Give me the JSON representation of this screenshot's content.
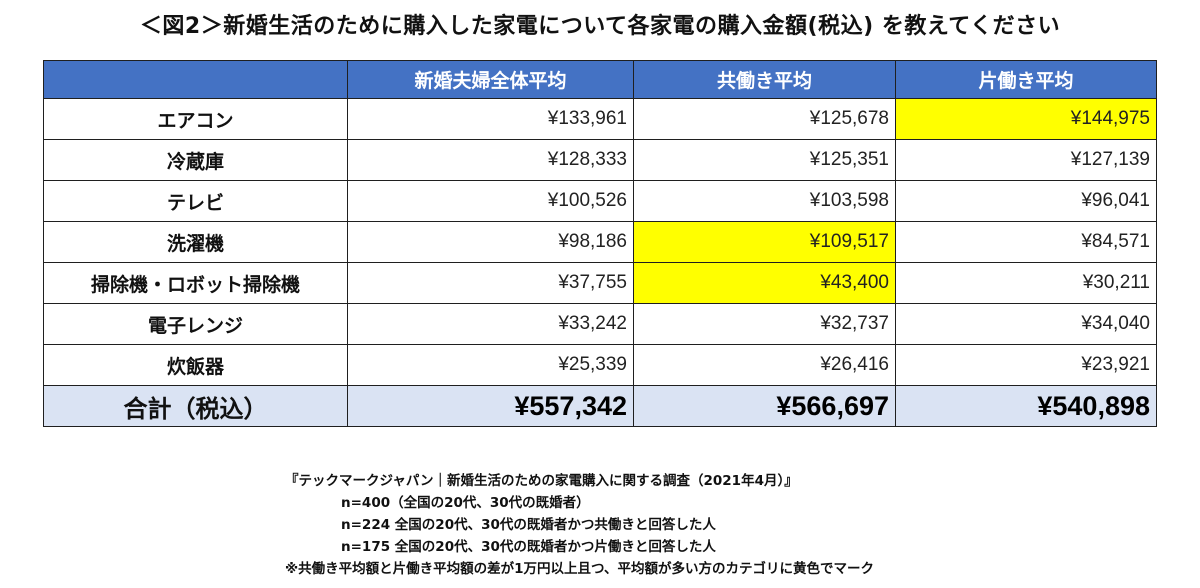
{
  "title": "＜図2＞新婚生活のために購入した家電について各家電の購入金額(税込) を教えてください",
  "chart_data": {
    "type": "table",
    "columns": [
      "",
      "新婚夫婦全体平均",
      "共働き平均",
      "片働き平均"
    ],
    "rows": [
      {
        "label": "エアコン",
        "values": [
          "¥133,961",
          "¥125,678",
          "¥144,975"
        ],
        "highlight": [
          false,
          false,
          true
        ]
      },
      {
        "label": "冷蔵庫",
        "values": [
          "¥128,333",
          "¥125,351",
          "¥127,139"
        ],
        "highlight": [
          false,
          false,
          false
        ]
      },
      {
        "label": "テレビ",
        "values": [
          "¥100,526",
          "¥103,598",
          "¥96,041"
        ],
        "highlight": [
          false,
          false,
          false
        ]
      },
      {
        "label": "洗濯機",
        "values": [
          "¥98,186",
          "¥109,517",
          "¥84,571"
        ],
        "highlight": [
          false,
          true,
          false
        ]
      },
      {
        "label": "掃除機・ロボット掃除機",
        "values": [
          "¥37,755",
          "¥43,400",
          "¥30,211"
        ],
        "highlight": [
          false,
          true,
          false
        ]
      },
      {
        "label": "電子レンジ",
        "values": [
          "¥33,242",
          "¥32,737",
          "¥34,040"
        ],
        "highlight": [
          false,
          false,
          false
        ]
      },
      {
        "label": "炊飯器",
        "values": [
          "¥25,339",
          "¥26,416",
          "¥23,921"
        ],
        "highlight": [
          false,
          false,
          false
        ]
      }
    ],
    "total": {
      "label": "合計（税込）",
      "values": [
        "¥557,342",
        "¥566,697",
        "¥540,898"
      ]
    }
  },
  "colors": {
    "header_bg": "#4472c4",
    "highlight": "#ffff00",
    "total_bg": "#dae3f3"
  },
  "notes": {
    "source": "『テックマークジャパン｜新婚生活のための家電購入に関する調査（2021年4月）』",
    "n1": "n=400（全国の20代、30代の既婚者）",
    "n2": "n=224 全国の20代、30代の既婚者かつ共働きと回答した人",
    "n3": "n=175 全国の20代、30代の既婚者かつ片働きと回答した人",
    "marker": "※共働き平均額と片働き平均額の差が1万円以上且つ、平均額が多い方のカテゴリに黄色でマーク"
  }
}
